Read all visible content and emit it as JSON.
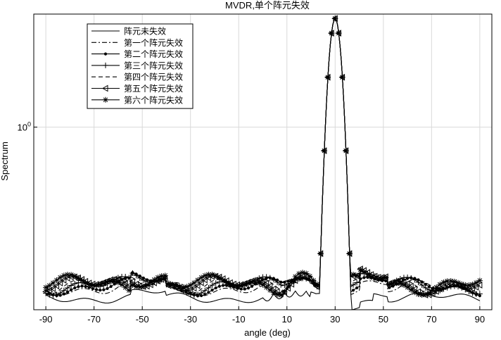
{
  "chart_data": {
    "type": "line",
    "title": "MVDR,单个阵元失效",
    "xlabel": "angle (deg)",
    "ylabel": "Spectrum",
    "xlim": [
      -95,
      95
    ],
    "x_ticks": [
      -90,
      -70,
      -50,
      -30,
      -10,
      10,
      30,
      50,
      70,
      90
    ],
    "x_tick_labels": [
      "-90",
      "-70",
      "-50",
      "-30",
      "-10",
      "10",
      "30",
      "50",
      "70",
      "90"
    ],
    "y_scale": "log",
    "y_tick_value": 1,
    "y_tick_label_base": "10",
    "y_tick_label_exp": "0",
    "ylim": [
      0.34,
      1.95
    ],
    "grid": true,
    "legend_position": "top-left",
    "peak_angle": 30,
    "series": [
      {
        "name": "阵元未失效",
        "line": "solid",
        "marker": "none",
        "floor": 0.36,
        "ripple": 0.012,
        "phase": 0.0
      },
      {
        "name": "第一个阵元失效",
        "line": "dashdot",
        "marker": "none",
        "floor": 0.38,
        "ripple": 0.018,
        "phase": 0.3
      },
      {
        "name": "第二个阵元失效",
        "line": "solid",
        "marker": "dot",
        "floor": 0.382,
        "ripple": 0.019,
        "phase": 0.7
      },
      {
        "name": "第三个阵元失效",
        "line": "solid",
        "marker": "plus",
        "floor": 0.384,
        "ripple": 0.02,
        "phase": 1.1
      },
      {
        "name": "第四个阵元失效",
        "line": "dashed",
        "marker": "none",
        "floor": 0.383,
        "ripple": 0.02,
        "phase": 1.5
      },
      {
        "name": "第五个阵元失效",
        "line": "solid",
        "marker": "triangle-left",
        "floor": 0.385,
        "ripple": 0.021,
        "phase": 1.9
      },
      {
        "name": "第六个阵元失效",
        "line": "solid",
        "marker": "asterisk",
        "floor": 0.386,
        "ripple": 0.022,
        "phase": 2.3
      }
    ]
  }
}
